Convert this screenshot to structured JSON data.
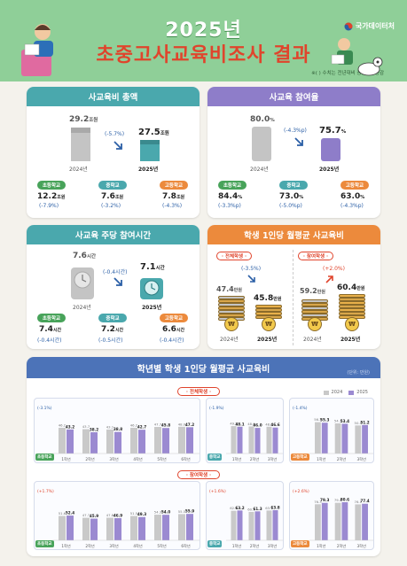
{
  "header": {
    "title_line1": "2025년",
    "title_line2": "초중고사교육비조사 결과",
    "logo_text": "국가데이터처",
    "note": "※( ) 수치는 전년대비 증감률 · 증감"
  },
  "colors": {
    "green": "#8fcf98",
    "teal": "#4aa8ad",
    "purple": "#8e7dc9",
    "orange": "#ec8a3c",
    "blue": "#4c73b8",
    "red": "#e0442c",
    "gray_bar": "#c4c4c4"
  },
  "total": {
    "title": "사교육비 총액",
    "prev_value": "29.2",
    "prev_unit": "조원",
    "prev_year": "2024년",
    "change": "(-5.7%)",
    "curr_value": "27.5",
    "curr_unit": "조원",
    "curr_year": "2025년",
    "schools": [
      {
        "label": "초등학교",
        "value": "12.2",
        "unit": "조원",
        "change": "(-7.9%)"
      },
      {
        "label": "중학교",
        "value": "7.6",
        "unit": "조원",
        "change": "(-3.2%)"
      },
      {
        "label": "고등학교",
        "value": "7.8",
        "unit": "조원",
        "change": "(-4.3%)"
      }
    ]
  },
  "participation": {
    "title": "사교육 참여율",
    "prev_value": "80.0",
    "prev_unit": "%",
    "prev_year": "2024년",
    "change": "(-4.3%p)",
    "curr_value": "75.7",
    "curr_unit": "%",
    "curr_year": "2025년",
    "schools": [
      {
        "label": "초등학교",
        "value": "84.4",
        "unit": "%",
        "change": "(-3.3%p)"
      },
      {
        "label": "중학교",
        "value": "73.0",
        "unit": "%",
        "change": "(-5.0%p)"
      },
      {
        "label": "고등학교",
        "value": "63.0",
        "unit": "%",
        "change": "(-4.3%p)"
      }
    ]
  },
  "hours": {
    "title": "사교육 주당 참여시간",
    "prev_value": "7.6",
    "prev_unit": "시간",
    "prev_year": "2024년",
    "change": "(-0.4시간)",
    "curr_value": "7.1",
    "curr_unit": "시간",
    "curr_year": "2025년",
    "schools": [
      {
        "label": "초등학교",
        "value": "7.4",
        "unit": "시간",
        "change": "(-0.4시간)"
      },
      {
        "label": "중학교",
        "value": "7.2",
        "unit": "시간",
        "change": "(-0.5시간)"
      },
      {
        "label": "고등학교",
        "value": "6.6",
        "unit": "시간",
        "change": "(-0.4시간)"
      }
    ]
  },
  "monthly": {
    "title": "학생 1인당 월평균 사교육비",
    "all": {
      "tag": "· 전체학생 ·",
      "prev": "47.4",
      "prev_unit": "만원",
      "change": "(-3.5%)",
      "curr": "45.8",
      "curr_unit": "만원",
      "prev_year": "2024년",
      "curr_year": "2025년"
    },
    "part": {
      "tag": "· 참여학생 ·",
      "prev": "59.2",
      "prev_unit": "만원",
      "change": "(+2.0%)",
      "curr": "60.4",
      "curr_unit": "만원",
      "prev_year": "2024년",
      "curr_year": "2025년"
    },
    "coin_symbol": "₩"
  },
  "grade": {
    "title": "학년별 학생 1인당 월평균 사교육비",
    "unit": "(단위: 만원)",
    "legend": [
      "2024",
      "2025"
    ],
    "all_tag": "· 전체학생 ·",
    "part_tag": "· 참여학생 ·"
  },
  "chart_data": [
    {
      "type": "bar",
      "title": "학년별 학생 1인당 월평균 사교육비 · 전체학생 · 초등학교",
      "categories": [
        "1학년",
        "2학년",
        "3학년",
        "4학년",
        "5학년",
        "6학년"
      ],
      "series": [
        {
          "name": "2024",
          "values": [
            46.2,
            43.7,
            43.1,
            46.2,
            47.7,
            48.0
          ]
        },
        {
          "name": "2025",
          "values": [
            43.2,
            38.2,
            38.8,
            42.7,
            45.8,
            47.2
          ]
        }
      ],
      "ylim": [
        0,
        70
      ]
    },
    {
      "type": "bar",
      "title": "학년별 학생 1인당 월평균 사교육비 · 전체학생 · 중학교",
      "categories": [
        "1학년",
        "2학년",
        "3학년"
      ],
      "series": [
        {
          "name": "2024",
          "values": [
            49.2,
            48.6,
            48.0
          ]
        },
        {
          "name": "2025",
          "values": [
            48.1,
            46.0,
            46.6
          ]
        }
      ],
      "ylim": [
        0,
        70
      ]
    },
    {
      "type": "bar",
      "title": "학년별 학생 1인당 월평균 사교육비 · 전체학생 · 고등학교",
      "categories": [
        "1학년",
        "2학년",
        "3학년"
      ],
      "series": [
        {
          "name": "2024",
          "values": [
            56.3,
            54.1,
            50.4
          ]
        },
        {
          "name": "2025",
          "values": [
            55.3,
            53.4,
            51.2
          ]
        }
      ],
      "ylim": [
        0,
        70
      ]
    },
    {
      "type": "bar",
      "title": "학년별 학생 1인당 월평균 사교육비 · 참여학생 · 초등학교",
      "categories": [
        "1학년",
        "2학년",
        "3학년",
        "4학년",
        "5학년",
        "6학년"
      ],
      "series": [
        {
          "name": "2024",
          "values": [
            51.6,
            47.7,
            47.8,
            51.5,
            54.3,
            55.5
          ]
        },
        {
          "name": "2025",
          "values": [
            52.4,
            45.9,
            46.9,
            49.3,
            54.0,
            55.9
          ]
        }
      ],
      "ylim": [
        0,
        90
      ]
    },
    {
      "type": "bar",
      "title": "학년별 학생 1인당 월평균 사교육비 · 참여학생 · 중학교",
      "categories": [
        "1학년",
        "2학년",
        "3학년"
      ],
      "series": [
        {
          "name": "2024",
          "values": [
            62.5,
            60.1,
            63.1
          ]
        },
        {
          "name": "2025",
          "values": [
            63.2,
            61.3,
            63.8
          ]
        }
      ],
      "ylim": [
        0,
        90
      ]
    },
    {
      "type": "bar",
      "title": "학년별 학생 1인당 월평균 사교육비 · 참여학생 · 고등학교",
      "categories": [
        "1학년",
        "2학년",
        "3학년"
      ],
      "series": [
        {
          "name": "2024",
          "values": [
            76.3,
            79.4,
            76.1
          ]
        },
        {
          "name": "2025",
          "values": [
            79.3,
            80.6,
            77.4
          ]
        }
      ],
      "ylim": [
        0,
        90
      ]
    }
  ],
  "grade_changes": {
    "all": [
      "(-3.1%)",
      "(-1.9%)",
      "(-1.4%)"
    ],
    "part": [
      "(+1.7%)",
      "(+1.6%)",
      "(+2.6%)"
    ]
  },
  "school_labels": [
    "초등학교",
    "중학교",
    "고등학교"
  ]
}
